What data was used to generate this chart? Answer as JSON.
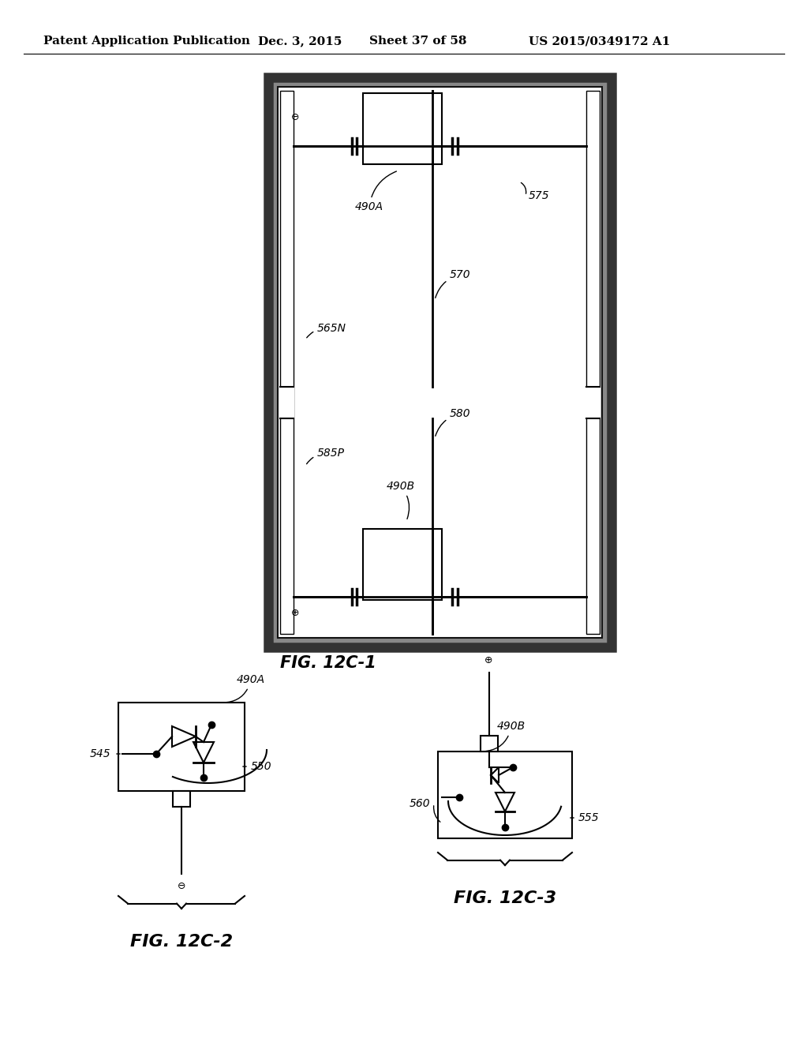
{
  "bg_color": "#ffffff",
  "header_left": "Patent Application Publication",
  "header_mid": "Dec. 3, 2015",
  "header_sheet": "Sheet 37 of 58",
  "header_right": "US 2015/0349172 A1",
  "fig1_title": "FIG. 12C-1",
  "fig2_title": "FIG. 12C-2",
  "fig3_title": "FIG. 12C-3"
}
